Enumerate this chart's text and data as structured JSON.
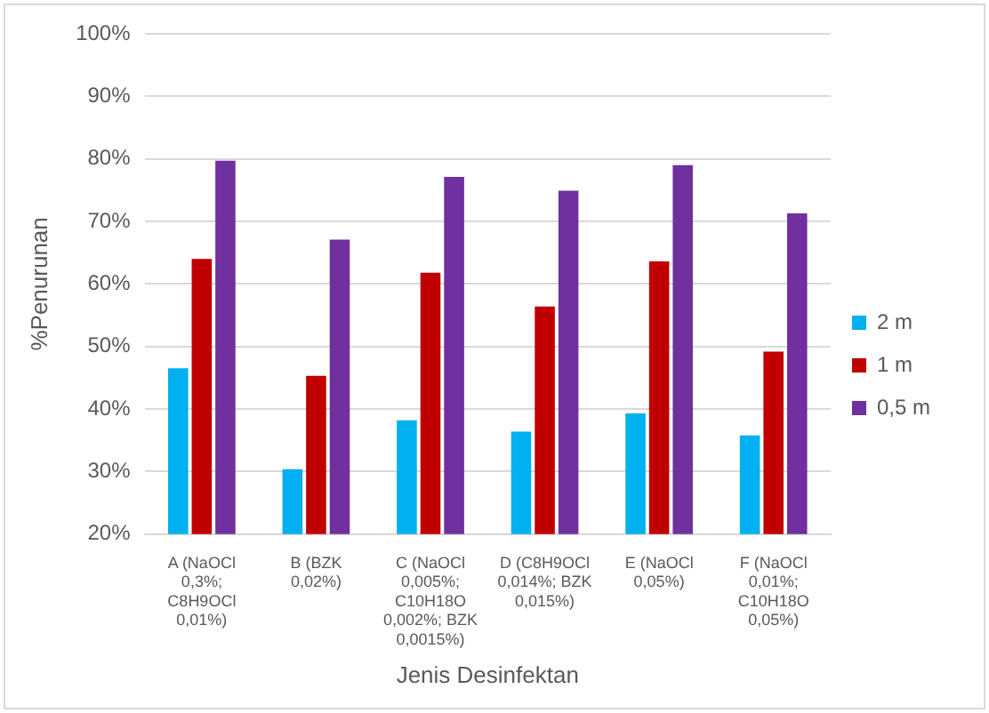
{
  "chart_data": {
    "type": "bar",
    "xlabel": "Jenis Desinfektan",
    "ylabel": "%Penurunan",
    "categories": [
      "A (NaOCl 0,3%; C8H9OCl 0,01%)",
      "B (BZK 0,02%)",
      "C (NaOCl 0,005%; C10H18O 0,002%; BZK 0,0015%)",
      "D (C8H9OCl 0,014%; BZK 0,015%)",
      "E (NaOCl 0,05%)",
      "F (NaOCl 0,01%; C10H18O 0,05%)"
    ],
    "series": [
      {
        "name": "2 m",
        "color": "#00b0f0",
        "values": [
          46.5,
          30.4,
          38.2,
          36.4,
          39.3,
          35.8
        ]
      },
      {
        "name": "1 m",
        "color": "#c00000",
        "values": [
          64,
          45.3,
          61.8,
          56.4,
          63.6,
          49.2
        ]
      },
      {
        "name": "0,5 m",
        "color": "#7030a0",
        "values": [
          79.7,
          67.1,
          77.1,
          74.9,
          79,
          71.3
        ]
      }
    ],
    "ylim": [
      20,
      100
    ],
    "yticks": [
      {
        "value": 20,
        "label": "20%"
      },
      {
        "value": 30,
        "label": "30%"
      },
      {
        "value": 40,
        "label": "40%"
      },
      {
        "value": 50,
        "label": "50%"
      },
      {
        "value": 60,
        "label": "60%"
      },
      {
        "value": 70,
        "label": "70%"
      },
      {
        "value": 80,
        "label": "80%"
      },
      {
        "value": 90,
        "label": "90%"
      },
      {
        "value": 100,
        "label": "100%"
      }
    ],
    "grid": "y",
    "legend": "right"
  }
}
